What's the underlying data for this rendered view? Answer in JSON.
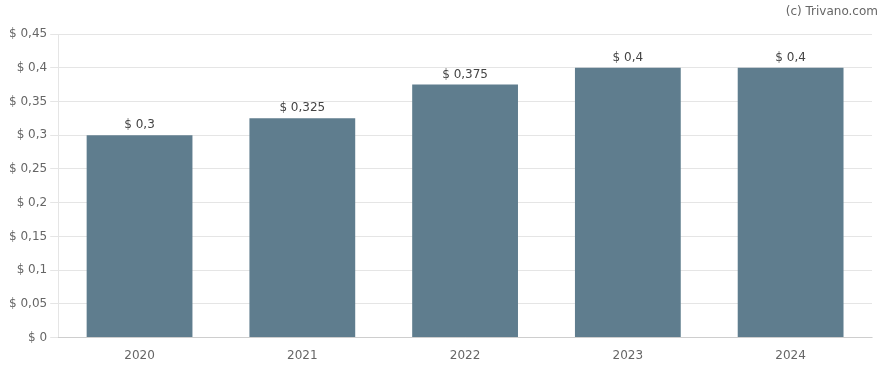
{
  "chart_data": {
    "type": "bar",
    "categories": [
      "2020",
      "2021",
      "2022",
      "2023",
      "2024"
    ],
    "values": [
      0.3,
      0.325,
      0.375,
      0.4,
      0.4
    ],
    "value_labels": [
      "$ 0,3",
      "$ 0,325",
      "$ 0,375",
      "$ 0,4",
      "$ 0,4"
    ],
    "data_labels": true,
    "color": "#5f7d8e",
    "ylim": [
      0,
      0.45
    ],
    "yticks": [
      {
        "value": 0,
        "label": "$ 0"
      },
      {
        "value": 0.05,
        "label": "$ 0,05"
      },
      {
        "value": 0.1,
        "label": "$ 0,1"
      },
      {
        "value": 0.15,
        "label": "$ 0,15"
      },
      {
        "value": 0.2,
        "label": "$ 0,2"
      },
      {
        "value": 0.25,
        "label": "$ 0,25"
      },
      {
        "value": 0.3,
        "label": "$ 0,3"
      },
      {
        "value": 0.35,
        "label": "$ 0,35"
      },
      {
        "value": 0.4,
        "label": "$ 0,4"
      },
      {
        "value": 0.45,
        "label": "$ 0,45"
      }
    ],
    "grid": true,
    "annotation": "(c) Trivano.com"
  }
}
